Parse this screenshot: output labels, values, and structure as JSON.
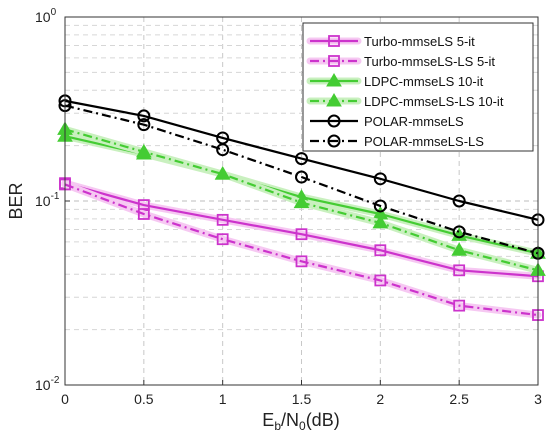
{
  "chart_data": {
    "type": "line",
    "title": "",
    "xlabel": {
      "main": "E",
      "sub1": "b",
      "mid": "/N",
      "sub2": "0",
      "tail": "(dB)"
    },
    "ylabel": "BER",
    "x": [
      0,
      0.5,
      1,
      1.5,
      2,
      2.5,
      3
    ],
    "xlim": [
      0,
      3
    ],
    "ylim": [
      0.01,
      1
    ],
    "yscale": "log",
    "grid": true,
    "legend_position": "top-right",
    "x_ticks": [
      "0",
      "0.5",
      "1",
      "1.5",
      "2",
      "2.5",
      "3"
    ],
    "y_ticks": [
      {
        "base": "10",
        "exp": "0",
        "value": 1
      },
      {
        "base": "10",
        "exp": "-1",
        "value": 0.1
      },
      {
        "base": "10",
        "exp": "-2",
        "value": 0.01
      }
    ],
    "series": [
      {
        "name": "Turbo-mmseLS 5-it",
        "color": "#cc33cc",
        "glow": "#f6c8f2",
        "marker": "square",
        "dash": "solid",
        "values": [
          0.125,
          0.095,
          0.079,
          0.066,
          0.054,
          0.042,
          0.039
        ]
      },
      {
        "name": "Turbo-mmseLS-LS 5-it",
        "color": "#cc33cc",
        "glow": "#f6c8f2",
        "marker": "square",
        "dash": "dashdot",
        "values": [
          0.123,
          0.085,
          0.062,
          0.047,
          0.037,
          0.027,
          0.024
        ]
      },
      {
        "name": "LDPC-mmseLS 10-it",
        "color": "#44cc33",
        "glow": "#c9f0bf",
        "marker": "triangle",
        "dash": "solid",
        "values": [
          0.225,
          0.18,
          0.14,
          0.105,
          0.085,
          0.065,
          0.052
        ]
      },
      {
        "name": "LDPC-mmseLS-LS 10-it",
        "color": "#44cc33",
        "glow": "#c9f0bf",
        "marker": "triangle",
        "dash": "dashdot",
        "values": [
          0.245,
          0.185,
          0.14,
          0.098,
          0.076,
          0.054,
          0.042
        ]
      },
      {
        "name": "POLAR-mmseLS",
        "color": "#000000",
        "glow": "",
        "marker": "circle",
        "dash": "solid",
        "values": [
          0.35,
          0.29,
          0.22,
          0.17,
          0.132,
          0.1,
          0.079
        ]
      },
      {
        "name": "POLAR-mmseLS-LS",
        "color": "#000000",
        "glow": "",
        "marker": "circle",
        "dash": "dashdot",
        "values": [
          0.33,
          0.26,
          0.19,
          0.135,
          0.094,
          0.068,
          0.052
        ]
      }
    ]
  }
}
